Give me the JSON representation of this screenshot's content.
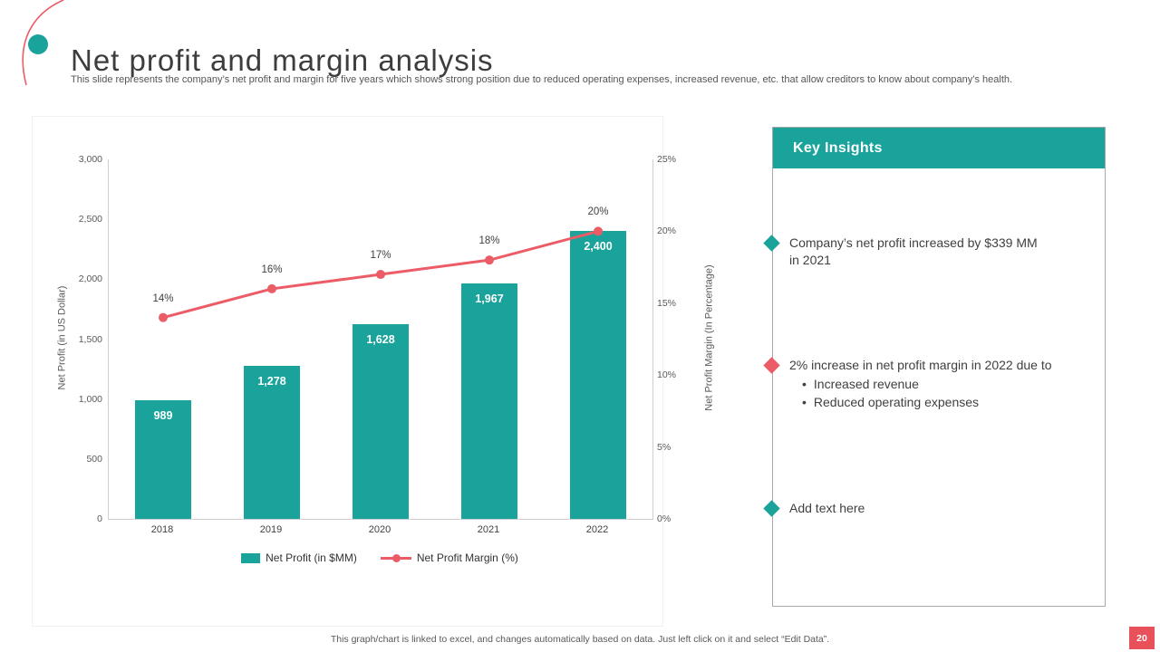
{
  "header": {
    "title": "Net profit and margin analysis",
    "subtitle": "This slide represents the company’s net profit and margin for five years which shows strong position due to reduced operating expenses, increased revenue, etc. that allow creditors to know about company’s health."
  },
  "colors": {
    "teal": "#1aa39b",
    "red": "#ec5c67",
    "badge_red": "#e8505a"
  },
  "chart_data": {
    "type": "combo bar+line",
    "categories": [
      "2018",
      "2019",
      "2020",
      "2021",
      "2022"
    ],
    "series": [
      {
        "name": "Net Profit (in $MM)",
        "type": "bar",
        "axis": "left",
        "color": "#1aa39b",
        "values": [
          989,
          1278,
          1628,
          1967,
          2400
        ],
        "labels": [
          "989",
          "1,278",
          "1,628",
          "1,967",
          "2,400"
        ]
      },
      {
        "name": "Net Profit Margin (%)",
        "type": "line",
        "axis": "right",
        "color": "#ec5c67",
        "values": [
          14,
          16,
          17,
          18,
          20
        ],
        "labels": [
          "14%",
          "16%",
          "17%",
          "18%",
          "20%"
        ]
      }
    ],
    "left_axis": {
      "title": "Net Profit (in US Dollar)",
      "min": 0,
      "max": 3000,
      "ticks": [
        "0",
        "500",
        "1,000",
        "1,500",
        "2,000",
        "2,500",
        "3,000"
      ]
    },
    "right_axis": {
      "title": "Net Profit Margin (In Percentage)",
      "min": 0,
      "max": 25,
      "ticks": [
        "0%",
        "5%",
        "10%",
        "15%",
        "20%",
        "25%"
      ]
    },
    "grid": false,
    "legend_position": "bottom"
  },
  "insights": {
    "title": "Key Insights",
    "items": [
      {
        "marker_color": "#1aa39b",
        "text": "Company’s net profit increased by $339 MM in 2021",
        "sub_bullets": []
      },
      {
        "marker_color": "#ec5c67",
        "text": "2% increase in net profit margin in 2022 due to",
        "sub_bullets": [
          "Increased revenue",
          "Reduced operating expenses"
        ]
      },
      {
        "marker_color": "#1aa39b",
        "text": "Add text here",
        "sub_bullets": []
      }
    ]
  },
  "footer": {
    "note": "This graph/chart is linked to excel, and changes automatically based on data. Just left click on it and select “Edit Data”.",
    "page_number": "20"
  }
}
